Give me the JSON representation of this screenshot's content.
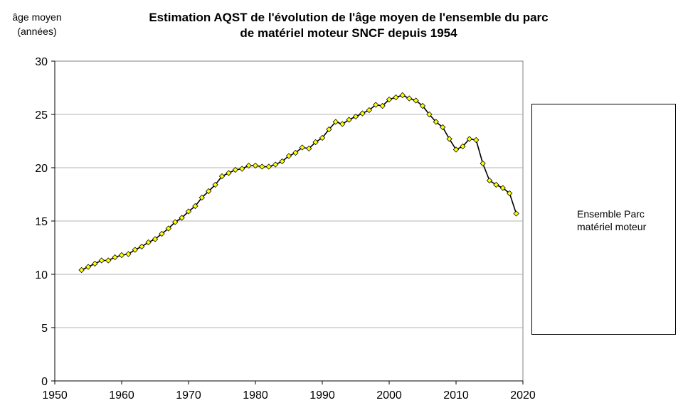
{
  "chart_data": {
    "type": "line",
    "title_line1": "Estimation AQST de l'évolution de l'âge moyen de l'ensemble du parc",
    "title_line2": "de matériel moteur SNCF depuis 1954",
    "ylabel_line1": "âge moyen",
    "ylabel_line2": "(années)",
    "xlabel": "",
    "xlim": [
      1950,
      2020
    ],
    "ylim": [
      0,
      30
    ],
    "xticks": [
      1950,
      1960,
      1970,
      1980,
      1990,
      2000,
      2010,
      2020
    ],
    "yticks": [
      0,
      5,
      10,
      15,
      20,
      25,
      30
    ],
    "grid": "horizontal",
    "legend_position": "right",
    "series": [
      {
        "name_line1": "Ensemble Parc",
        "name_line2": "matériel moteur",
        "line_color": "#000000",
        "marker_color": "#ffff00",
        "marker": "diamond",
        "x": [
          1954,
          1955,
          1956,
          1957,
          1958,
          1959,
          1960,
          1961,
          1962,
          1963,
          1964,
          1965,
          1966,
          1967,
          1968,
          1969,
          1970,
          1971,
          1972,
          1973,
          1974,
          1975,
          1976,
          1977,
          1978,
          1979,
          1980,
          1981,
          1982,
          1983,
          1984,
          1985,
          1986,
          1987,
          1988,
          1989,
          1990,
          1991,
          1992,
          1993,
          1994,
          1995,
          1996,
          1997,
          1998,
          1999,
          2000,
          2001,
          2002,
          2003,
          2004,
          2005,
          2006,
          2007,
          2008,
          2009,
          2010,
          2011,
          2012,
          2013,
          2014,
          2015,
          2016,
          2017,
          2018,
          2019
        ],
        "y": [
          10.4,
          10.7,
          11.0,
          11.3,
          11.3,
          11.6,
          11.8,
          11.9,
          12.3,
          12.6,
          13.0,
          13.3,
          13.8,
          14.3,
          14.9,
          15.3,
          15.9,
          16.4,
          17.2,
          17.8,
          18.4,
          19.2,
          19.5,
          19.8,
          19.9,
          20.2,
          20.2,
          20.1,
          20.1,
          20.3,
          20.6,
          21.1,
          21.4,
          21.9,
          21.8,
          22.4,
          22.8,
          23.6,
          24.3,
          24.1,
          24.5,
          24.8,
          25.1,
          25.4,
          25.9,
          25.8,
          26.4,
          26.6,
          26.8,
          26.5,
          26.3,
          25.8,
          25.0,
          24.3,
          23.8,
          22.7,
          21.7,
          22.0,
          22.7,
          22.6,
          20.4,
          18.8,
          18.4,
          18.1,
          17.6,
          15.7
        ]
      }
    ]
  }
}
